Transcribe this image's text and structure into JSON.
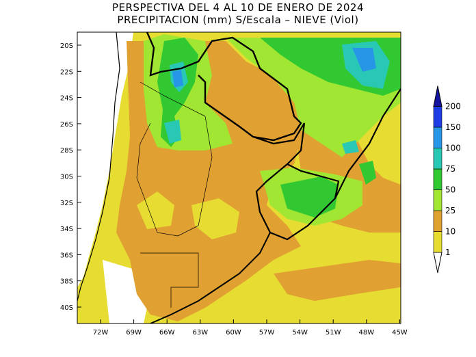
{
  "title": {
    "line1": "PERSPECTIVA DEL 4 AL 10 DE ENERO DE 2024",
    "line2": "PRECIPITACION (mm) S/Escala – NIEVE (Viol)"
  },
  "axes": {
    "lat_labels": [
      "20S",
      "22S",
      "24S",
      "26S",
      "28S",
      "30S",
      "32S",
      "34S",
      "36S",
      "38S",
      "40S"
    ],
    "lon_labels": [
      "72W",
      "69W",
      "66W",
      "63W",
      "60W",
      "57W",
      "54W",
      "51W",
      "48W",
      "45W"
    ]
  },
  "legend": {
    "levels": [
      "1",
      "10",
      "25",
      "50",
      "75",
      "100",
      "150",
      "200"
    ],
    "colors": {
      "c1_10": "#e6dc32",
      "c10_25": "#e1a032",
      "c25_50": "#a0e632",
      "c50_75": "#32c832",
      "c75_100": "#28c8b4",
      "c100_150": "#2896e6",
      "c150_200": "#1e3ce6",
      "c200": "#1414a0"
    }
  }
}
